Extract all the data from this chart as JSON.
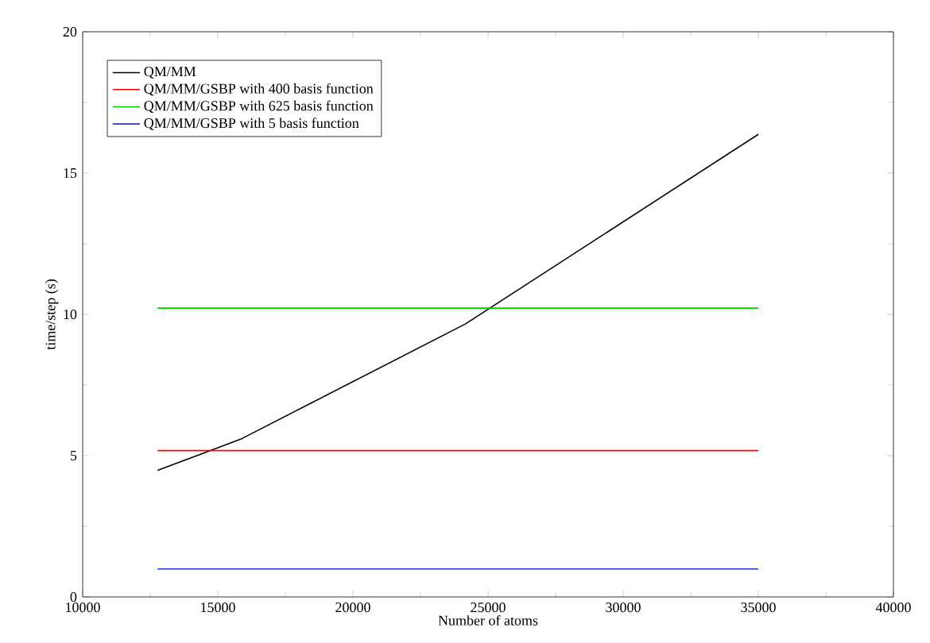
{
  "chart_data": {
    "type": "line",
    "xlabel": "Number of atoms",
    "ylabel": "time/step (s)",
    "xlim": [
      10000,
      40000
    ],
    "xticks": [
      10000,
      15000,
      20000,
      25000,
      30000,
      35000,
      40000
    ],
    "ylim": [
      0,
      20
    ],
    "yticks": [
      0,
      5,
      10,
      15,
      20
    ],
    "grid": false,
    "legend": "top left",
    "marker": "none",
    "line_style": "solid",
    "series": [
      {
        "name": "QM/MM",
        "color": "#000000",
        "x": [
          12770,
          15840,
          24160,
          35000
        ],
        "values": [
          4.48,
          5.58,
          9.66,
          16.37
        ]
      },
      {
        "name": "QM/MM/GSBP with 400 basis function",
        "color": "#ff0000",
        "x": [
          12770,
          35000
        ],
        "values": [
          5.18,
          5.18
        ]
      },
      {
        "name": "QM/MM/GSBP with 625 basis function",
        "color": "#00cc00",
        "x": [
          12770,
          35000
        ],
        "values": [
          10.22,
          10.22
        ]
      },
      {
        "name": "QM/MM/GSBP with 5 basis function",
        "color": "#2233cc",
        "x": [
          12770,
          35000
        ],
        "values": [
          0.99,
          0.99
        ]
      }
    ]
  }
}
